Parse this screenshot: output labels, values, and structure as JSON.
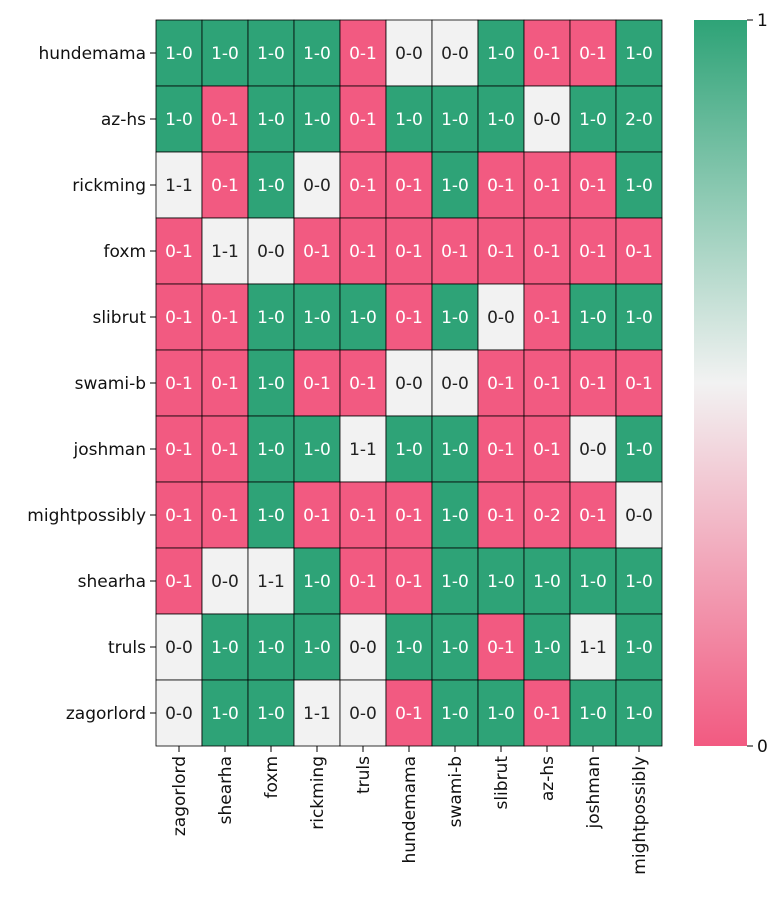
{
  "chart_data": {
    "type": "heatmap",
    "title": "",
    "xlabel": "",
    "ylabel": "",
    "rows": [
      "hundemama",
      "az-hs",
      "rickming",
      "foxm",
      "slibrut",
      "swami-b",
      "joshman",
      "mightpossibly",
      "shearha",
      "truls",
      "zagorlord"
    ],
    "columns": [
      "zagorlord",
      "shearha",
      "foxm",
      "rickming",
      "truls",
      "hundemama",
      "swami-b",
      "slibrut",
      "az-hs",
      "joshman",
      "mightpossibly"
    ],
    "cells": [
      [
        "1-0",
        "1-0",
        "1-0",
        "1-0",
        "0-1",
        "0-0",
        "0-0",
        "1-0",
        "0-1",
        "0-1",
        "1-0"
      ],
      [
        "1-0",
        "0-1",
        "1-0",
        "1-0",
        "0-1",
        "1-0",
        "1-0",
        "1-0",
        "0-0",
        "1-0",
        "2-0"
      ],
      [
        "1-1",
        "0-1",
        "1-0",
        "0-0",
        "0-1",
        "0-1",
        "1-0",
        "0-1",
        "0-1",
        "0-1",
        "1-0"
      ],
      [
        "0-1",
        "1-1",
        "0-0",
        "0-1",
        "0-1",
        "0-1",
        "0-1",
        "0-1",
        "0-1",
        "0-1",
        "0-1"
      ],
      [
        "0-1",
        "0-1",
        "1-0",
        "1-0",
        "1-0",
        "0-1",
        "1-0",
        "0-0",
        "0-1",
        "1-0",
        "1-0"
      ],
      [
        "0-1",
        "0-1",
        "1-0",
        "0-1",
        "0-1",
        "0-0",
        "0-0",
        "0-1",
        "0-1",
        "0-1",
        "0-1"
      ],
      [
        "0-1",
        "0-1",
        "1-0",
        "1-0",
        "1-1",
        "1-0",
        "1-0",
        "0-1",
        "0-1",
        "0-0",
        "1-0"
      ],
      [
        "0-1",
        "0-1",
        "1-0",
        "0-1",
        "0-1",
        "0-1",
        "1-0",
        "0-1",
        "0-2",
        "0-1",
        "0-0"
      ],
      [
        "0-1",
        "0-0",
        "1-1",
        "1-0",
        "0-1",
        "0-1",
        "1-0",
        "1-0",
        "1-0",
        "1-0",
        "1-0"
      ],
      [
        "0-0",
        "1-0",
        "1-0",
        "1-0",
        "0-0",
        "1-0",
        "1-0",
        "0-1",
        "1-0",
        "1-1",
        "1-0"
      ],
      [
        "0-0",
        "1-0",
        "1-0",
        "1-1",
        "0-0",
        "0-1",
        "1-0",
        "1-0",
        "0-1",
        "1-0",
        "1-0"
      ]
    ],
    "values": [
      [
        1,
        1,
        1,
        1,
        0,
        0.5,
        0.5,
        1,
        0,
        0,
        1
      ],
      [
        1,
        0,
        1,
        1,
        0,
        1,
        1,
        1,
        0.5,
        1,
        1
      ],
      [
        0.5,
        0,
        1,
        0.5,
        0,
        0,
        1,
        0,
        0,
        0,
        1
      ],
      [
        0,
        0.5,
        0.5,
        0,
        0,
        0,
        0,
        0,
        0,
        0,
        0
      ],
      [
        0,
        0,
        1,
        1,
        1,
        0,
        1,
        0.5,
        0,
        1,
        1
      ],
      [
        0,
        0,
        1,
        0,
        0,
        0.5,
        0.5,
        0,
        0,
        0,
        0
      ],
      [
        0,
        0,
        1,
        1,
        0.5,
        1,
        1,
        0,
        0,
        0.5,
        1
      ],
      [
        0,
        0,
        1,
        0,
        0,
        0,
        1,
        0,
        0,
        0,
        0.5
      ],
      [
        0,
        0.5,
        0.5,
        1,
        0,
        0,
        1,
        1,
        1,
        1,
        1
      ],
      [
        0.5,
        1,
        1,
        1,
        0.5,
        1,
        1,
        0,
        1,
        0.5,
        1
      ],
      [
        0.5,
        1,
        1,
        0.5,
        0.5,
        0,
        1,
        1,
        0,
        1,
        1
      ]
    ],
    "colorbar": {
      "range": [
        0,
        1
      ],
      "ticks": [
        "0",
        "1"
      ]
    },
    "colors": {
      "low": "#f25a81",
      "mid": "#f2f2f2",
      "high": "#2ea377",
      "grid": "#000000",
      "text_light": "#ffffff",
      "text_dark": "#222222"
    }
  }
}
